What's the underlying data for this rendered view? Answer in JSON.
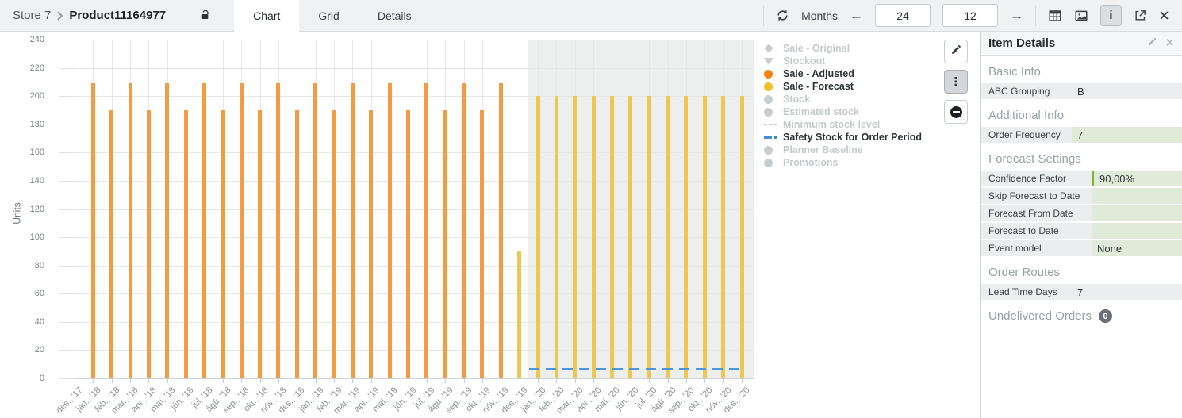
{
  "topbar": {
    "breadcrumb": {
      "store": "Store 7",
      "product": "Product11164977"
    },
    "tabs": [
      {
        "label": "Chart",
        "active": true
      },
      {
        "label": "Grid",
        "active": false
      },
      {
        "label": "Details",
        "active": false
      }
    ],
    "period": {
      "label": "Months",
      "back_arrow": "←",
      "forward_arrow": "→",
      "months_back": "24",
      "months_forward": "12"
    }
  },
  "chart_data": {
    "type": "bar",
    "title": "",
    "xlabel": "",
    "ylabel": "Units",
    "ylim": [
      0,
      240
    ],
    "ytick_step": 20,
    "grid": true,
    "legend_position": "right",
    "categories": [
      "des., '17",
      "jan., '18",
      "feb., '18",
      "mar., '18",
      "apr., '18",
      "maí, '18",
      "jún, '18",
      "júl, '18",
      "ágú, '18",
      "sep., '18",
      "okt., '18",
      "nóv., '18",
      "des., '18",
      "jan., '19",
      "feb., '19",
      "mar., '19",
      "apr., '19",
      "maí, '19",
      "jún, '19",
      "júl, '19",
      "ágú, '19",
      "sep., '19",
      "okt., '19",
      "nóv., '19",
      "des., '19",
      "jan., '20",
      "feb., '20",
      "mar., '20",
      "apr., '20",
      "maí, '20",
      "jún, '20",
      "júl, '20",
      "ágú, '20",
      "sep., '20",
      "okt., '20",
      "nóv., '20",
      "des., '20"
    ],
    "series": [
      {
        "name": "Sale - Adjusted",
        "type": "bar",
        "color": "#F39C42",
        "values": [
          null,
          209,
          190,
          209,
          190,
          209,
          190,
          209,
          190,
          209,
          190,
          209,
          190,
          209,
          190,
          209,
          190,
          209,
          190,
          209,
          190,
          209,
          190,
          209,
          null,
          null,
          null,
          null,
          null,
          null,
          null,
          null,
          null,
          null,
          null,
          null,
          null
        ]
      },
      {
        "name": "Sale - Forecast",
        "type": "bar",
        "color": "#EFC64F",
        "values": [
          null,
          null,
          null,
          null,
          null,
          null,
          null,
          null,
          null,
          null,
          null,
          null,
          null,
          null,
          null,
          null,
          null,
          null,
          null,
          null,
          null,
          null,
          null,
          null,
          90,
          200,
          200,
          200,
          200,
          200,
          200,
          200,
          200,
          200,
          200,
          200,
          200
        ]
      },
      {
        "name": "Safety Stock for Order Period",
        "type": "dashed-line",
        "color": "#4C97DC",
        "value": 7,
        "start_index": 24.5,
        "end_index": 35.5
      }
    ],
    "forecast_region": {
      "start_index": 24.5,
      "color": "#EDEEEE"
    }
  },
  "legend": {
    "items": [
      {
        "label": "Sale - Original",
        "marker": "diamond",
        "enabled": false
      },
      {
        "label": "Stockout",
        "marker": "triangle",
        "enabled": false
      },
      {
        "label": "Sale - Adjusted",
        "marker": "circle",
        "color": "#F28414",
        "enabled": true
      },
      {
        "label": "Sale - Forecast",
        "marker": "circle",
        "color": "#F1BE2C",
        "enabled": true
      },
      {
        "label": "Stock",
        "marker": "circle",
        "enabled": false
      },
      {
        "label": "Estimated stock",
        "marker": "circle",
        "enabled": false
      },
      {
        "label": "Minimum stock level",
        "marker": "dashes",
        "enabled": false
      },
      {
        "label": "Safety Stock for Order Period",
        "marker": "dash-dot",
        "color": "#3D8FD6",
        "enabled": true
      },
      {
        "label": "Planner Baseline",
        "marker": "circle",
        "enabled": false
      },
      {
        "label": "Promotions",
        "marker": "circle",
        "enabled": false
      }
    ],
    "disabled_color": "#C9CDD1"
  },
  "panel": {
    "title": "Item Details",
    "sections": [
      {
        "header": "Basic Info",
        "rows": [
          {
            "label": "ABC Grouping",
            "value": "B"
          }
        ]
      },
      {
        "header": "Additional Info",
        "rows": [
          {
            "label": "Order Frequency",
            "value": "7"
          }
        ]
      },
      {
        "header": "Forecast Settings",
        "rows": [
          {
            "label": "Confidence Factor",
            "value": "90,00%"
          },
          {
            "label": "Skip Forecast to Date",
            "value": ""
          },
          {
            "label": "Forecast From Date",
            "value": ""
          },
          {
            "label": "Forecast to Date",
            "value": ""
          },
          {
            "label": "Event model",
            "value": "None"
          }
        ]
      },
      {
        "header": "Order Routes",
        "rows": [
          {
            "label": "Lead Time Days",
            "value": "7"
          }
        ]
      },
      {
        "header": "Undelivered Orders",
        "badge": "0",
        "rows": []
      }
    ]
  }
}
